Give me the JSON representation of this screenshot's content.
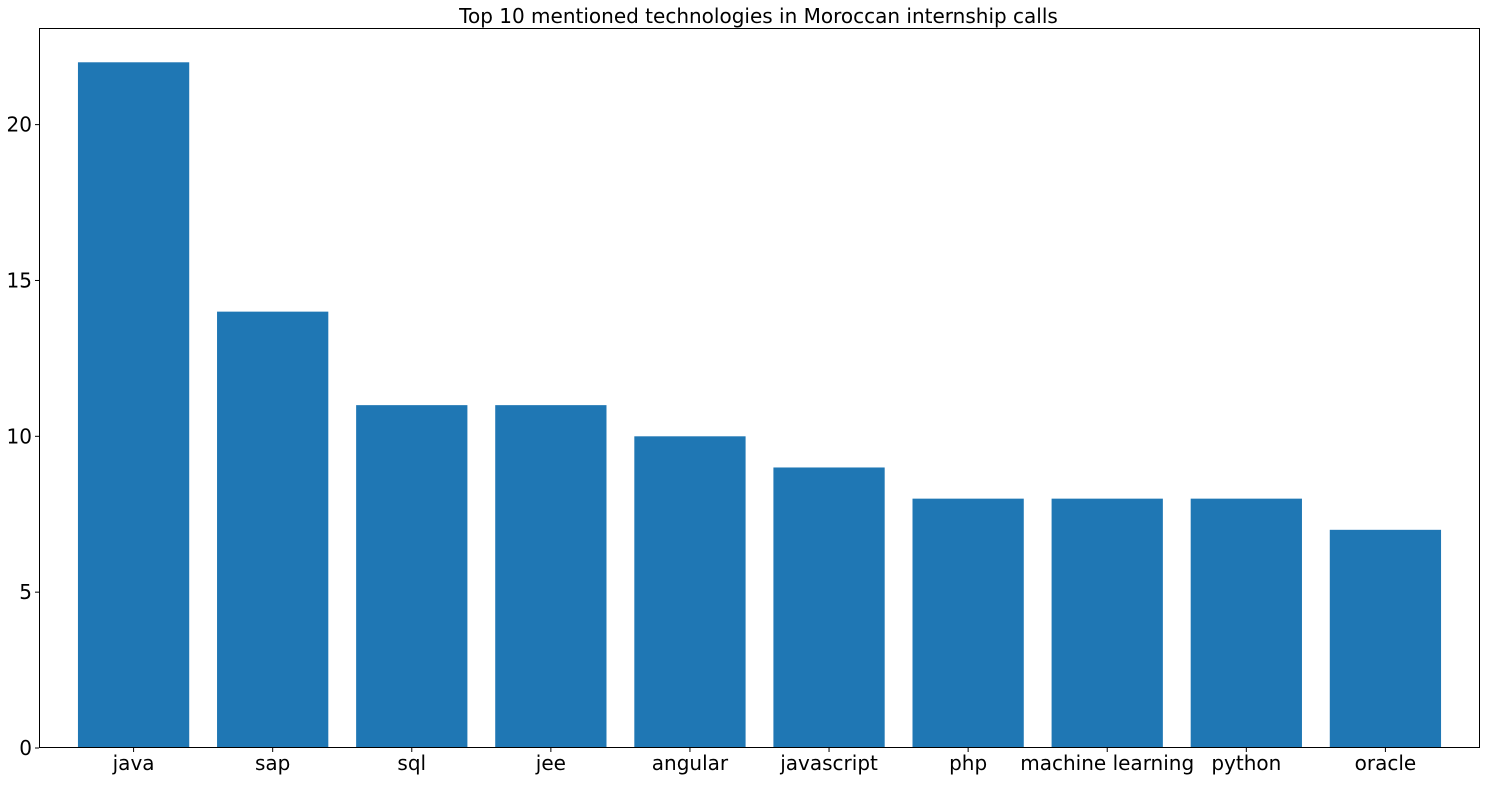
{
  "chart_data": {
    "type": "bar",
    "title": "Top 10 mentioned technologies in Moroccan internship calls",
    "xlabel": "",
    "ylabel": "",
    "categories": [
      "java",
      "sap",
      "sql",
      "jee",
      "angular",
      "javascript",
      "php",
      "machine learning",
      "python",
      "oracle"
    ],
    "values": [
      22,
      14,
      11,
      11,
      10,
      9,
      8,
      8,
      8,
      7
    ],
    "ylim": [
      0,
      23.1
    ],
    "yticks": [
      0,
      5,
      10,
      15,
      20
    ],
    "grid": false,
    "legend": "none",
    "bar_color": "#1f77b4"
  }
}
